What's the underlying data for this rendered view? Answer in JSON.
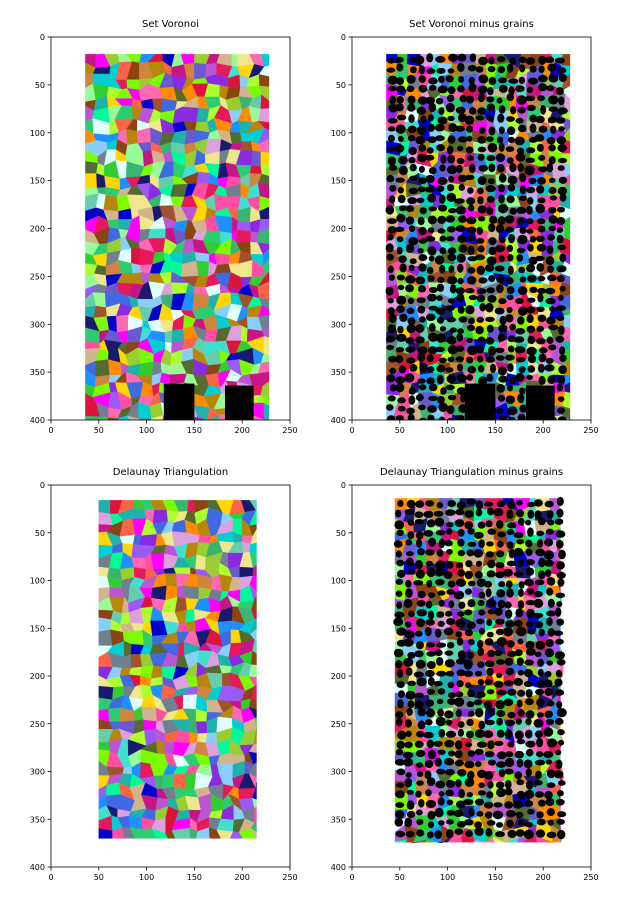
{
  "chart_data": [
    {
      "type": "heatmap",
      "title": "Set Voronoi",
      "xlim": [
        0,
        250
      ],
      "ylim": [
        400,
        0
      ],
      "xticks": [
        0,
        50,
        100,
        150,
        200,
        250
      ],
      "yticks": [
        0,
        50,
        100,
        150,
        200,
        250,
        300,
        350,
        400
      ],
      "region": {
        "x": [
          36,
          228
        ],
        "y": [
          18,
          402
        ]
      },
      "holes": false,
      "dark_blocks": [
        [
          118,
          150,
          362,
          402
        ],
        [
          182,
          212,
          364,
          400
        ]
      ]
    },
    {
      "type": "heatmap",
      "title": "Set Voronoi minus grains",
      "xlim": [
        0,
        250
      ],
      "ylim": [
        400,
        0
      ],
      "xticks": [
        0,
        50,
        100,
        150,
        200,
        250
      ],
      "yticks": [
        0,
        50,
        100,
        150,
        200,
        250,
        300,
        350,
        400
      ],
      "region": {
        "x": [
          36,
          228
        ],
        "y": [
          18,
          402
        ]
      },
      "holes": true,
      "dark_blocks": [
        [
          118,
          150,
          362,
          402
        ],
        [
          182,
          212,
          364,
          400
        ]
      ]
    },
    {
      "type": "heatmap",
      "title": "Delaunay Triangulation",
      "xlim": [
        0,
        250
      ],
      "ylim": [
        400,
        0
      ],
      "xticks": [
        0,
        50,
        100,
        150,
        200,
        250
      ],
      "yticks": [
        0,
        50,
        100,
        150,
        200,
        250,
        300,
        350,
        400
      ],
      "region": {
        "x": [
          50,
          215
        ],
        "y": [
          16,
          370
        ]
      },
      "holes": false,
      "dark_blocks": []
    },
    {
      "type": "heatmap",
      "title": "Delaunay Triangulation minus grains",
      "xlim": [
        0,
        250
      ],
      "ylim": [
        400,
        0
      ],
      "xticks": [
        0,
        50,
        100,
        150,
        200,
        250
      ],
      "yticks": [
        0,
        50,
        100,
        150,
        200,
        250,
        300,
        350,
        400
      ],
      "region": {
        "x": [
          45,
          218
        ],
        "y": [
          14,
          374
        ]
      },
      "holes": true,
      "dark_blocks": []
    }
  ],
  "palette": [
    "#e6195b",
    "#ff4fa3",
    "#9b59f5",
    "#6a5acd",
    "#2ecc71",
    "#7cfc00",
    "#00ced1",
    "#1e90ff",
    "#0000cd",
    "#ffd700",
    "#b8860b",
    "#cd853f",
    "#ff8c00",
    "#dc143c",
    "#8b4513",
    "#708090",
    "#556b2f",
    "#00fa9a",
    "#adff2f",
    "#dda0dd",
    "#f0e68c",
    "#40e0d0",
    "#4169e1",
    "#ff69b4",
    "#32cd32",
    "#20b2aa",
    "#ba55d3",
    "#c71585",
    "#87cefa",
    "#3cb371",
    "#8a2be2",
    "#ff6347",
    "#d2b48c",
    "#e0ffff",
    "#98fb98",
    "#a0522d",
    "#191970",
    "#ff00ff",
    "#9acd32",
    "#66cdaa"
  ]
}
